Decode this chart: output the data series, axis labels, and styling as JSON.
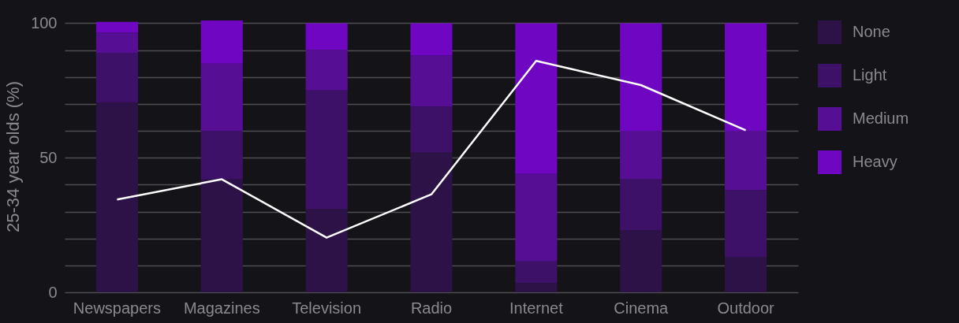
{
  "chart_data": {
    "type": "bar",
    "stacked": true,
    "categories": [
      "Newspapers",
      "Magazines",
      "Television",
      "Radio",
      "Internet",
      "Cinema",
      "Outdoor"
    ],
    "ylabel": "25-34 year olds (%)",
    "series": [
      {
        "name": "None",
        "color": "#2d1247",
        "values": [
          70.5,
          42,
          31,
          52,
          3.5,
          23,
          13
        ]
      },
      {
        "name": "Light",
        "color": "#3e1168",
        "values": [
          18.5,
          18,
          44,
          17,
          8,
          19,
          25
        ]
      },
      {
        "name": "Medium",
        "color": "#560e95",
        "values": [
          7.5,
          25,
          15,
          19,
          32.5,
          18,
          22
        ]
      },
      {
        "name": "Heavy",
        "color": "#6e06c2",
        "values": [
          4,
          16,
          10,
          12,
          56,
          40,
          40
        ]
      },
      {
        "type": "line",
        "color": "#ffffff",
        "values": [
          34.5,
          42,
          20.3,
          36.4,
          86,
          77,
          60.2
        ]
      }
    ],
    "ylim": [
      0,
      101
    ],
    "yticks": [
      0,
      {
        "value": 10,
        "label": null
      },
      {
        "value": 20,
        "label": null
      },
      {
        "value": 30,
        "label": null
      },
      {
        "value": 40,
        "label": null
      },
      50,
      {
        "value": 60,
        "label": null
      },
      {
        "value": 70,
        "label": null
      },
      {
        "value": 80,
        "label": null
      },
      {
        "value": 90,
        "label": null
      },
      100
    ],
    "grid": "y",
    "legend": "top right",
    "line_style": "solid",
    "marker": "none"
  }
}
